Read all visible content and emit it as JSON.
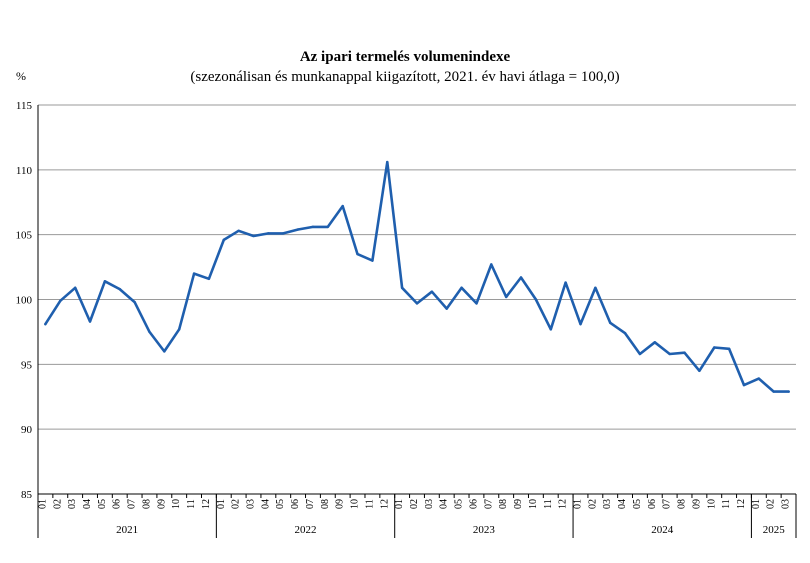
{
  "chart_data": {
    "type": "line",
    "title": "Az ipari termelés volumenindexe",
    "subtitle": "(szezonálisan és munkanappal kiigazított, 2021. év havi átlaga = 100,0)",
    "ylabel": "%",
    "ylim": [
      85,
      115
    ],
    "yticks": [
      85,
      90,
      95,
      100,
      105,
      110,
      115
    ],
    "grid": true,
    "line_color": "#1f5fae",
    "years": [
      {
        "label": "2021",
        "months": 12
      },
      {
        "label": "2022",
        "months": 12
      },
      {
        "label": "2023",
        "months": 12
      },
      {
        "label": "2024",
        "months": 12
      },
      {
        "label": "2025",
        "months": 3
      }
    ],
    "month_labels": [
      "01",
      "02",
      "03",
      "04",
      "05",
      "06",
      "07",
      "08",
      "09",
      "10",
      "11",
      "12",
      "01",
      "02",
      "03",
      "04",
      "05",
      "06",
      "07",
      "08",
      "09",
      "10",
      "11",
      "12",
      "01",
      "02",
      "03",
      "04",
      "05",
      "06",
      "07",
      "08",
      "09",
      "10",
      "11",
      "12",
      "01",
      "02",
      "03",
      "04",
      "05",
      "06",
      "07",
      "08",
      "09",
      "10",
      "11",
      "12",
      "01",
      "02",
      "03"
    ],
    "values": [
      98.1,
      99.9,
      100.9,
      98.3,
      101.4,
      100.8,
      99.8,
      97.5,
      96.0,
      97.7,
      102.0,
      101.6,
      104.6,
      105.3,
      104.9,
      105.1,
      105.1,
      105.4,
      105.6,
      105.6,
      107.2,
      103.5,
      103.0,
      110.6,
      100.9,
      99.7,
      100.6,
      99.3,
      100.9,
      99.7,
      102.7,
      100.2,
      101.7,
      100.0,
      97.7,
      101.3,
      98.1,
      100.9,
      98.2,
      97.4,
      95.8,
      96.7,
      95.8,
      95.9,
      94.5,
      96.3,
      96.2,
      93.4,
      93.9,
      92.9,
      92.9
    ]
  }
}
